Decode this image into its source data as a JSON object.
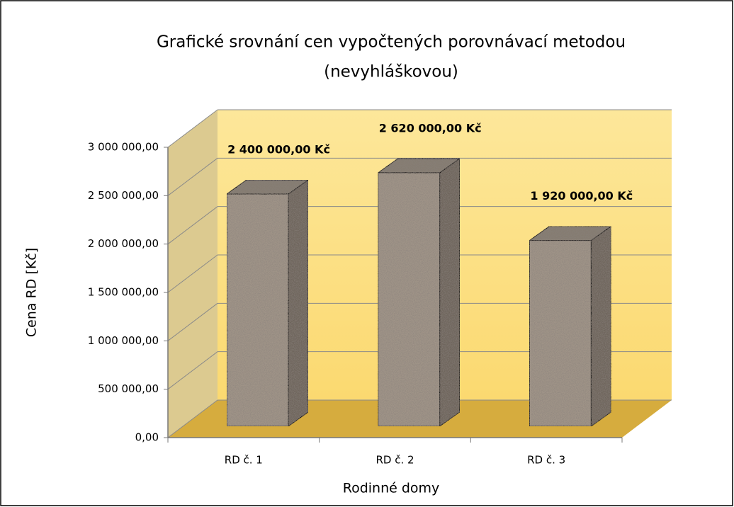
{
  "chart_data": {
    "type": "bar3d",
    "title": "Grafické srovnání cen vypočtených porovnávací metodou",
    "subtitle": "(nevyhláškovou)",
    "x_label": "Rodinné domy",
    "y_label": "Cena RD [Kč]",
    "categories": [
      "RD č. 1",
      "RD č. 2",
      "RD č. 3"
    ],
    "values": [
      2400000,
      2620000,
      1920000
    ],
    "value_labels": [
      "2 400 000,00 Kč",
      "2 620 000,00 Kč",
      "1 920 000,00 Kč"
    ],
    "color": "#a09488",
    "ylim": [
      0,
      3000000
    ],
    "yticks": [
      {
        "value": 0,
        "label": "0,00"
      },
      {
        "value": 500000,
        "label": "500 000,00"
      },
      {
        "value": 1000000,
        "label": "1 000 000,00"
      },
      {
        "value": 1500000,
        "label": "1 500 000,00"
      },
      {
        "value": 2000000,
        "label": "2 000 000,00"
      },
      {
        "value": 2500000,
        "label": "2 500 000,00"
      },
      {
        "value": 3000000,
        "label": "3 000 000,00"
      }
    ],
    "grid": true
  }
}
